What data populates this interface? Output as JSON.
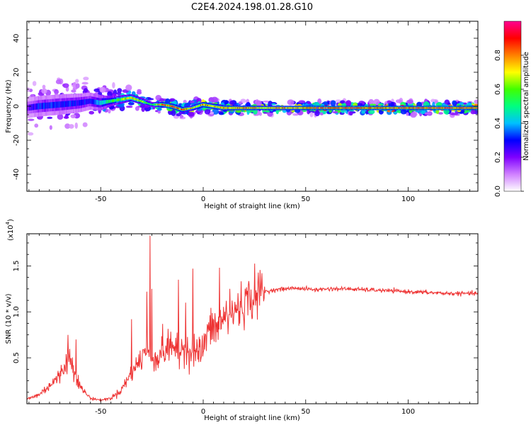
{
  "title": "C2E4.2024.198.01.28.G10",
  "colorbar": {
    "label": "Normalized spectral amplitude",
    "ticks": [
      "0.0",
      "0.2",
      "0.4",
      "0.6",
      "0.8"
    ],
    "tick_values": [
      0.0,
      0.2,
      0.4,
      0.6,
      0.8
    ],
    "colormap": [
      "#ffffff",
      "#d080ff",
      "#7f00ff",
      "#0000ff",
      "#00c0ff",
      "#00ff80",
      "#40ff00",
      "#ffff00",
      "#ff8000",
      "#ff0000",
      "#ff0090"
    ]
  },
  "chart_data": [
    {
      "type": "heatmap",
      "ylabel": "Frequency (Hz)",
      "xlabel": "Height of straight line (km)",
      "xlim": [
        -86,
        134
      ],
      "ylim": [
        -50,
        50
      ],
      "xticks": [
        -50,
        0,
        50,
        100
      ],
      "yticks": [
        -40,
        -20,
        0,
        20,
        40
      ],
      "xtick_labels": [
        "-50",
        "0",
        "50",
        "100"
      ],
      "ytick_labels": [
        "-40",
        "-20",
        "0",
        "20",
        "40"
      ],
      "ridge": {
        "x": [
          -86,
          -80,
          -70,
          -60,
          -55,
          -50,
          -45,
          -40,
          -35,
          -30,
          -25,
          -20,
          -15,
          -10,
          -5,
          0,
          5,
          10,
          20,
          30,
          40,
          50,
          70,
          90,
          110,
          134
        ],
        "freq": [
          -1,
          0,
          1,
          2,
          3,
          2,
          3,
          4,
          5,
          3,
          1,
          1,
          0,
          -2,
          -1,
          1,
          0,
          -1,
          -1,
          -1,
          -1,
          -1,
          -1,
          -1,
          -1,
          -1
        ],
        "amplitude": [
          0.2,
          0.3,
          0.3,
          0.3,
          0.3,
          0.4,
          0.5,
          0.6,
          0.7,
          0.6,
          0.5,
          0.8,
          0.9,
          0.8,
          0.7,
          0.8,
          0.75,
          0.8,
          0.8,
          0.75,
          0.8,
          0.85,
          0.9,
          0.88,
          0.9,
          0.9
        ],
        "spread_hz": [
          12,
          12,
          12,
          11,
          10,
          9,
          6,
          5,
          4,
          4,
          3,
          3,
          3,
          3,
          3,
          3,
          3,
          3,
          2.5,
          2.5,
          2.5,
          2.5,
          2.5,
          2.5,
          2.5,
          2.5
        ]
      }
    },
    {
      "type": "line",
      "ylabel": "SNR (10 * v/v)",
      "xlabel": "Height of straight line (km)",
      "y_multiplier_label": "(x10",
      "y_multiplier_exp": "4",
      "xlim": [
        -86,
        134
      ],
      "ylim": [
        0,
        1.85
      ],
      "xticks": [
        -50,
        0,
        50,
        100
      ],
      "yticks": [
        0.5,
        1.0,
        1.5
      ],
      "xtick_labels": [
        "-50",
        "0",
        "50",
        "100"
      ],
      "ytick_labels": [
        "0.5",
        "1.0",
        "1.5"
      ],
      "color": "#ee3333",
      "series": [
        {
          "x": [
            -86,
            -80,
            -75,
            -70,
            -67,
            -65,
            -63,
            -60,
            -55,
            -50,
            -45,
            -40,
            -36,
            -33,
            -30,
            -28,
            -26.5,
            -25,
            -22,
            -20,
            -17,
            -15,
            -12,
            -10,
            -7,
            -5,
            -2,
            0,
            2,
            5,
            8,
            10,
            13,
            15,
            20,
            25,
            30,
            35,
            40,
            45,
            50,
            55,
            60,
            70,
            80,
            90,
            100,
            110,
            120,
            134
          ],
          "y": [
            0.05,
            0.1,
            0.2,
            0.3,
            0.45,
            0.5,
            0.38,
            0.18,
            0.06,
            0.04,
            0.06,
            0.15,
            0.3,
            0.4,
            0.5,
            0.6,
            0.55,
            0.55,
            0.48,
            0.6,
            0.58,
            0.68,
            0.52,
            0.62,
            0.58,
            0.62,
            0.55,
            0.6,
            0.78,
            0.82,
            0.85,
            0.95,
            0.93,
            1.0,
            1.1,
            1.18,
            1.22,
            1.24,
            1.25,
            1.26,
            1.25,
            1.24,
            1.25,
            1.25,
            1.24,
            1.23,
            1.22,
            1.21,
            1.2,
            1.2
          ]
        }
      ],
      "spikes": [
        {
          "x": -26.0,
          "y": 1.83
        },
        {
          "x": -27.5,
          "y": 1.22
        },
        {
          "x": -25.0,
          "y": 1.25
        },
        {
          "x": -12.0,
          "y": 1.35
        },
        {
          "x": -5.0,
          "y": 1.47
        },
        {
          "x": -8.5,
          "y": 1.1
        },
        {
          "x": 8.0,
          "y": 1.48
        },
        {
          "x": 13.0,
          "y": 1.25
        },
        {
          "x": -66.0,
          "y": 0.75
        },
        {
          "x": -62.0,
          "y": 0.7
        },
        {
          "x": -35.0,
          "y": 0.92
        }
      ]
    }
  ]
}
